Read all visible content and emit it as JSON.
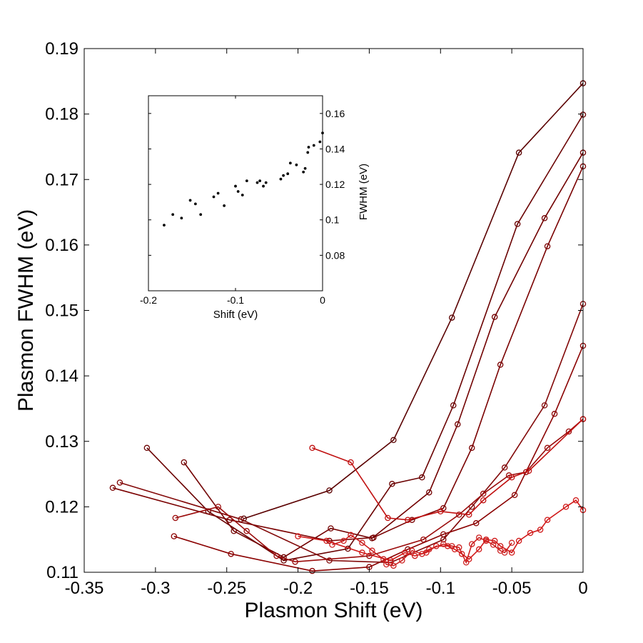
{
  "chart_data": [
    {
      "type": "line",
      "title": "",
      "xlabel": "Plasmon Shift (eV)",
      "ylabel": "Plasmon FWHM (eV)",
      "xlim": [
        -0.35,
        0
      ],
      "ylim": [
        0.11,
        0.19
      ],
      "xticks": [
        -0.35,
        -0.3,
        -0.25,
        -0.2,
        -0.15,
        -0.1,
        -0.05,
        0
      ],
      "yticks": [
        0.11,
        0.12,
        0.13,
        0.14,
        0.15,
        0.16,
        0.17,
        0.18,
        0.19
      ],
      "xtick_labels": [
        "-0.35",
        "-0.3",
        "-0.25",
        "-0.2",
        "-0.15",
        "-0.1",
        "-0.05",
        "0"
      ],
      "ytick_labels": [
        "0.11",
        "0.12",
        "0.13",
        "0.14",
        "0.15",
        "0.16",
        "0.17",
        "0.18",
        "0.19"
      ],
      "grid": false,
      "marker": "open-circle",
      "series": [
        {
          "color": "#5a0000",
          "x": [
            -0.238,
            -0.178,
            -0.133,
            -0.092,
            -0.045,
            0.0
          ],
          "y": [
            0.1182,
            0.1225,
            0.1302,
            0.1489,
            0.1741,
            0.1847
          ]
        },
        {
          "color": "#6a0000",
          "x": [
            -0.306,
            -0.263,
            -0.21,
            -0.165,
            -0.134,
            -0.113,
            -0.091,
            -0.046,
            0.0
          ],
          "y": [
            0.129,
            0.1193,
            0.1118,
            0.1136,
            0.1235,
            0.1245,
            0.1355,
            0.1632,
            0.1799
          ]
        },
        {
          "color": "#720000",
          "x": [
            -0.28,
            -0.245,
            -0.21,
            -0.177,
            -0.148,
            -0.108,
            -0.088,
            -0.062,
            -0.027,
            0.0
          ],
          "y": [
            0.1268,
            0.1163,
            0.1123,
            0.1167,
            0.1152,
            0.1222,
            0.1326,
            0.149,
            0.1641,
            0.1741
          ]
        },
        {
          "color": "#7a0000",
          "x": [
            -0.33,
            -0.248,
            -0.178,
            -0.147,
            -0.12,
            -0.098,
            -0.078,
            -0.058,
            -0.025,
            0.0
          ],
          "y": [
            0.1229,
            0.118,
            0.1148,
            0.1153,
            0.118,
            0.1198,
            0.129,
            0.1417,
            0.1598,
            0.172
          ]
        },
        {
          "color": "#820808",
          "x": [
            -0.325,
            -0.24,
            -0.178,
            -0.135,
            -0.098,
            -0.078,
            -0.055,
            -0.027,
            0.0
          ],
          "y": [
            0.1237,
            0.1181,
            0.1118,
            0.1115,
            0.115,
            0.12,
            0.126,
            0.1355,
            0.151
          ]
        },
        {
          "color": "#8a0000",
          "x": [
            -0.287,
            -0.247,
            -0.19,
            -0.15,
            -0.123,
            -0.098,
            -0.075,
            -0.048,
            -0.02,
            0.0
          ],
          "y": [
            0.1155,
            0.1128,
            0.1102,
            0.1108,
            0.1135,
            0.1158,
            0.1175,
            0.1218,
            0.1342,
            0.1446
          ]
        },
        {
          "color": "#9a0a0a",
          "x": [
            -0.286,
            -0.256,
            -0.236,
            -0.215,
            -0.202,
            -0.15,
            -0.112,
            -0.087,
            -0.07,
            -0.052,
            -0.04,
            -0.025,
            -0.01,
            0.0
          ],
          "y": [
            0.1183,
            0.12,
            0.1163,
            0.1125,
            0.1116,
            0.1125,
            0.115,
            0.1188,
            0.122,
            0.1248,
            0.1253,
            0.129,
            0.1315,
            0.1334
          ]
        },
        {
          "color": "#c01010",
          "x": [
            -0.19,
            -0.163,
            -0.137,
            -0.123,
            -0.1,
            -0.08,
            -0.07,
            -0.05,
            -0.038,
            0.0
          ],
          "y": [
            0.129,
            0.1268,
            0.1183,
            0.118,
            0.1193,
            0.1188,
            0.121,
            0.1245,
            0.1255,
            0.1334
          ]
        },
        {
          "color": "#d01818",
          "x": [
            -0.2,
            -0.18,
            -0.155,
            -0.135,
            -0.125,
            -0.118,
            -0.11,
            -0.103,
            -0.095,
            -0.09,
            -0.085,
            -0.08,
            -0.073,
            -0.068,
            -0.062,
            -0.058,
            -0.05,
            -0.045,
            -0.037,
            -0.03,
            -0.025,
            -0.012,
            -0.005,
            0.0
          ],
          "y": [
            0.1155,
            0.1148,
            0.113,
            0.1118,
            0.113,
            0.1125,
            0.113,
            0.114,
            0.114,
            0.1135,
            0.1128,
            0.112,
            0.1135,
            0.115,
            0.1148,
            0.114,
            0.113,
            0.1148,
            0.116,
            0.1165,
            0.118,
            0.12,
            0.121,
            0.1195
          ]
        },
        {
          "color": "#cc2020",
          "x": [
            -0.176,
            -0.168,
            -0.163,
            -0.155,
            -0.148,
            -0.14,
            -0.138,
            -0.133,
            -0.127,
            -0.12,
            -0.113,
            -0.108,
            -0.098,
            -0.092,
            -0.087,
            -0.082,
            -0.078,
            -0.073,
            -0.068,
            -0.063,
            -0.058,
            -0.055,
            -0.05
          ],
          "y": [
            0.1142,
            0.1148,
            0.1157,
            0.1145,
            0.1133,
            0.112,
            0.1112,
            0.111,
            0.1118,
            0.1133,
            0.1128,
            0.1135,
            0.1143,
            0.114,
            0.1138,
            0.1115,
            0.1143,
            0.1153,
            0.1148,
            0.1142,
            0.1133,
            0.113,
            0.1145
          ]
        }
      ]
    },
    {
      "type": "scatter",
      "title": "",
      "xlabel": "Shift (eV)",
      "ylabel": "FWHM (eV)",
      "xlim": [
        -0.2,
        0
      ],
      "ylim": [
        0.06,
        0.17
      ],
      "xticks": [
        -0.2,
        -0.1,
        0
      ],
      "yticks": [
        0.08,
        0.1,
        0.12,
        0.14,
        0.16
      ],
      "xtick_labels": [
        "-0.2",
        "-0.1",
        "0"
      ],
      "ytick_labels": [
        "0.08",
        "0.1",
        "0.12",
        "0.14",
        "0.16"
      ],
      "grid": false,
      "marker": "dot",
      "x": [
        -0.182,
        -0.172,
        -0.162,
        -0.152,
        -0.146,
        -0.14,
        -0.125,
        -0.12,
        -0.113,
        -0.1,
        -0.097,
        -0.092,
        -0.087,
        -0.075,
        -0.072,
        -0.068,
        -0.065,
        -0.048,
        -0.045,
        -0.04,
        -0.037,
        -0.03,
        -0.022,
        -0.02,
        -0.017,
        -0.016,
        -0.01,
        -0.003,
        0.0
      ],
      "y": [
        0.097,
        0.103,
        0.101,
        0.111,
        0.109,
        0.103,
        0.113,
        0.115,
        0.108,
        0.119,
        0.116,
        0.114,
        0.122,
        0.121,
        0.122,
        0.119,
        0.121,
        0.123,
        0.125,
        0.126,
        0.132,
        0.131,
        0.127,
        0.129,
        0.138,
        0.141,
        0.142,
        0.144,
        0.149
      ]
    }
  ]
}
